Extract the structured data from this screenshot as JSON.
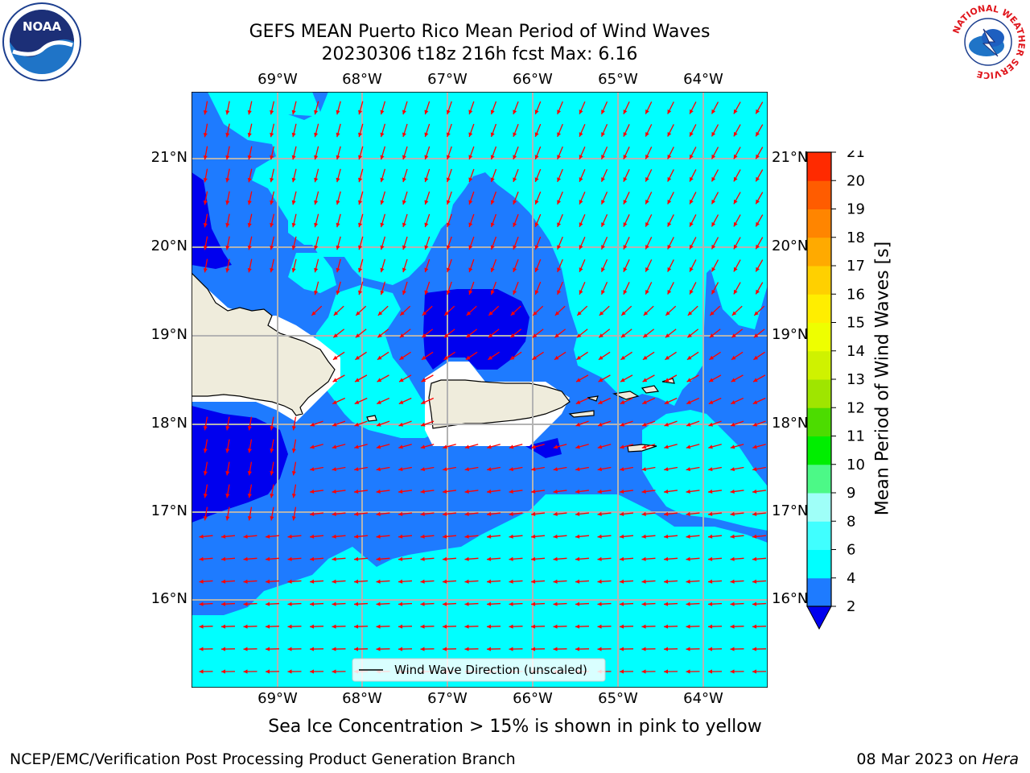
{
  "title_line1": "GEFS MEAN Puerto Rico Mean Period of Wind Waves",
  "title_line2": "20230306 t18z 216h fcst   Max: 6.16",
  "logos": {
    "left": "NOAA",
    "right_ring_text": "NATIONAL WEATHER SERVICE"
  },
  "map": {
    "lon_labels": [
      "69°W",
      "68°W",
      "67°W",
      "66°W",
      "65°W",
      "64°W"
    ],
    "lat_labels": [
      "21°N",
      "20°N",
      "19°N",
      "18°N",
      "17°N",
      "16°N"
    ],
    "legend_label": "Wind Wave Direction (unscaled)",
    "landmasses": [
      "Hispaniola",
      "Puerto Rico",
      "Virgin Islands"
    ],
    "colors": {
      "ocean_cyan": "#00ffff",
      "mid_blue": "#1e7bff",
      "deep_blue": "#0000ee",
      "land": "#efecdc",
      "arrow": "#ff0000"
    }
  },
  "colorbar": {
    "label": "Mean Period of Wind Waves [s]",
    "ticks": [
      "2",
      "4",
      "6",
      "8",
      "9",
      "10",
      "11",
      "12",
      "13",
      "14",
      "15",
      "16",
      "17",
      "18",
      "19",
      "20",
      "21"
    ],
    "colors": [
      "#1e7bff",
      "#00ffff",
      "#40ffff",
      "#9ffff8",
      "#4cf987",
      "#00ee00",
      "#4cdc00",
      "#9fe500",
      "#cff200",
      "#eeff00",
      "#ffee00",
      "#ffd000",
      "#ffaa00",
      "#ff8500",
      "#ff5c00",
      "#ff2a00"
    ],
    "under_color": "#0000ee"
  },
  "subtitle": "Sea Ice Concentration > 15% is shown in pink to yellow",
  "footer_left": "NCEP/EMC/Verification Post Processing Product Generation Branch",
  "footer_date": "08 Mar 2023 on ",
  "footer_host": "Hera"
}
